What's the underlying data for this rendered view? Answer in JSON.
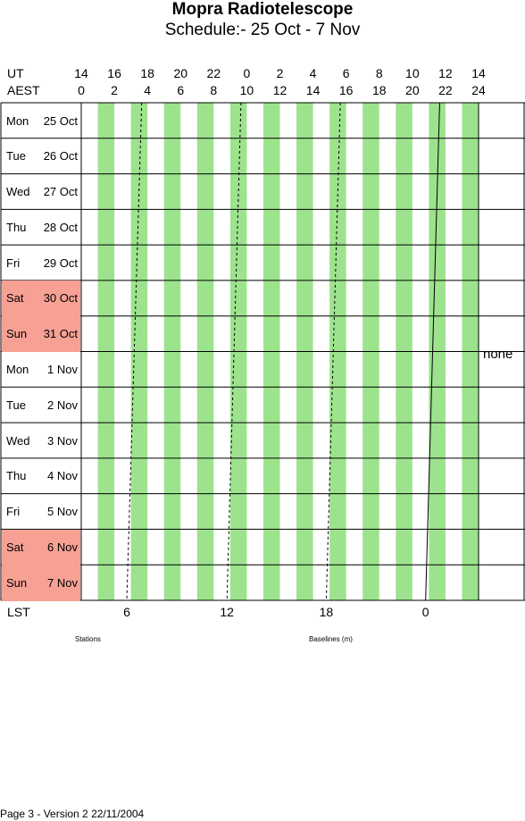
{
  "header": {
    "title": "Mopra Radiotelescope",
    "subtitle": "Schedule:- 25 Oct - 7  Nov"
  },
  "axes": {
    "ut_label": "UT",
    "aest_label": "AEST",
    "lst_label": "LST"
  },
  "chart_data": {
    "type": "table",
    "ut_ticks": [
      "14",
      "16",
      "18",
      "20",
      "22",
      "0",
      "2",
      "4",
      "6",
      "8",
      "10",
      "12",
      "14"
    ],
    "aest_ticks": [
      "0",
      "2",
      "4",
      "6",
      "8",
      "10",
      "12",
      "14",
      "16",
      "18",
      "20",
      "22",
      "24"
    ],
    "aest_range": [
      0,
      24
    ],
    "lst_ticks": [
      {
        "label": "6",
        "aest": 2.75
      },
      {
        "label": "12",
        "aest": 8.8
      },
      {
        "label": "18",
        "aest": 14.8
      },
      {
        "label": "0",
        "aest": 20.8
      }
    ],
    "days": [
      {
        "day": "Mon",
        "date": "25 Oct",
        "weekend": false
      },
      {
        "day": "Tue",
        "date": "26 Oct",
        "weekend": false
      },
      {
        "day": "Wed",
        "date": "27 Oct",
        "weekend": false
      },
      {
        "day": "Thu",
        "date": "28 Oct",
        "weekend": false
      },
      {
        "day": "Fri",
        "date": "29 Oct",
        "weekend": false
      },
      {
        "day": "Sat",
        "date": "30 Oct",
        "weekend": true
      },
      {
        "day": "Sun",
        "date": "31 Oct",
        "weekend": true
      },
      {
        "day": "Mon",
        "date": "1  Nov",
        "weekend": false
      },
      {
        "day": "Tue",
        "date": "2  Nov",
        "weekend": false
      },
      {
        "day": "Wed",
        "date": "3  Nov",
        "weekend": false
      },
      {
        "day": "Thu",
        "date": "4  Nov",
        "weekend": false
      },
      {
        "day": "Fri",
        "date": "5  Nov",
        "weekend": false
      },
      {
        "day": "Sat",
        "date": "6  Nov",
        "weekend": true
      },
      {
        "day": "Sun",
        "date": "7  Nov",
        "weekend": true
      }
    ],
    "stripe_color": "#9de38d",
    "weekend_color": "#f7a094",
    "stripes_aest": [
      [
        1,
        2
      ],
      [
        3,
        4
      ],
      [
        5,
        6
      ],
      [
        7,
        8
      ],
      [
        9,
        10
      ],
      [
        11,
        12
      ],
      [
        13,
        14
      ],
      [
        15,
        16
      ],
      [
        17,
        18
      ],
      [
        19,
        20
      ],
      [
        21,
        22
      ],
      [
        23,
        24
      ]
    ],
    "lst_dashed_lines": [
      {
        "lst": "6",
        "aest_start": 3.65,
        "aest_end": 2.75
      },
      {
        "lst": "12",
        "aest_start": 9.65,
        "aest_end": 8.8
      },
      {
        "lst": "18",
        "aest_start": 15.65,
        "aest_end": 14.8
      }
    ],
    "lst_solid_line": {
      "lst": "0",
      "aest_start": 21.65,
      "aest_end": 20.8
    },
    "right_column_text": "none"
  },
  "labels": {
    "stations": "Stations",
    "baselines": "Baselines (m)"
  },
  "footer": "Page 3 - Version 2  22/11/2004"
}
